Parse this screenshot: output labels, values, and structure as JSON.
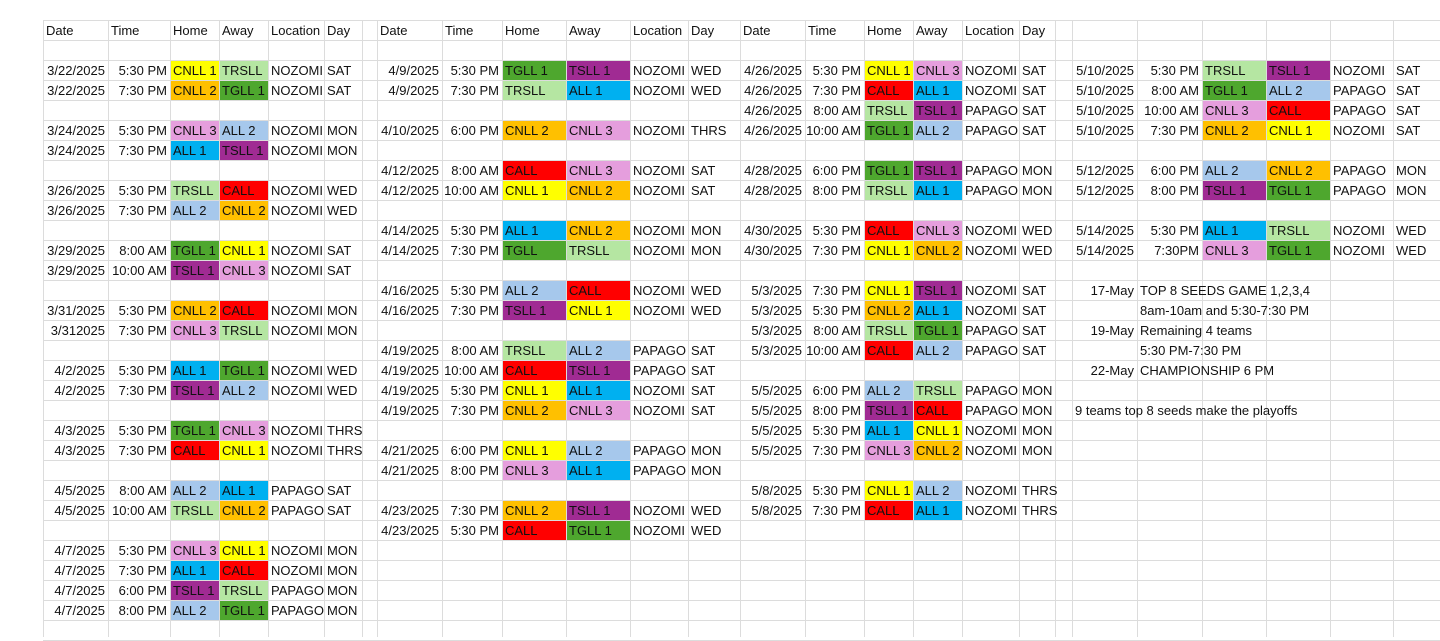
{
  "colors": {
    "CNLL 1": "#ffff00",
    "CNLL 2": "#ffc000",
    "CNLL 3": "#e59edd",
    "TGLL 1": "#4ea72e",
    "TSLL 1": "#a02b93",
    "TRSLL": "#b5e6a2",
    "ALL 1": "#00b0f0",
    "ALL 2": "#a6c8ec",
    "CALL": "#ff0000"
  },
  "headers": {
    "A": [
      "Date",
      "Time",
      "Home",
      "Away",
      "Location",
      "Day"
    ],
    "B": [
      "Date",
      "Time",
      "Home",
      "Away",
      "Location",
      "Day"
    ],
    "C": [
      "Date",
      "Time",
      "Home",
      "Away",
      "Location",
      "Day"
    ]
  },
  "games": {
    "A": [
      {
        "row": 3,
        "date": "3/22/2025",
        "time": "5:30 PM",
        "home": "CNLL 1",
        "away": "TRSLL",
        "location": "NOZOMI",
        "day": "SAT"
      },
      {
        "row": 4,
        "date": "3/22/2025",
        "time": "7:30 PM",
        "home": "CNLL 2",
        "away": "TGLL 1",
        "location": "NOZOMI",
        "day": "SAT"
      },
      {
        "row": 6,
        "date": "3/24/2025",
        "time": "5:30 PM",
        "home": "CNLL 3",
        "away": "ALL 2",
        "location": "NOZOMI",
        "day": "MON"
      },
      {
        "row": 7,
        "date": "3/24/2025",
        "time": "7:30 PM",
        "home": "ALL 1",
        "away": "TSLL 1",
        "location": "NOZOMI",
        "day": "MON"
      },
      {
        "row": 9,
        "date": "3/26/2025",
        "time": "5:30 PM",
        "home": "TRSLL",
        "away": "CALL",
        "location": "NOZOMI",
        "day": "WED"
      },
      {
        "row": 10,
        "date": "3/26/2025",
        "time": "7:30 PM",
        "home": "ALL 2",
        "away": "CNLL 2",
        "location": "NOZOMI",
        "day": "WED"
      },
      {
        "row": 12,
        "date": "3/29/2025",
        "time": "8:00 AM",
        "home": "TGLL 1",
        "away": "CNLL 1",
        "location": "NOZOMI",
        "day": "SAT"
      },
      {
        "row": 13,
        "date": "3/29/2025",
        "time": "10:00 AM",
        "home": "TSLL 1",
        "away": "CNLL 3",
        "location": "NOZOMI",
        "day": "SAT"
      },
      {
        "row": 15,
        "date": "3/31/2025",
        "time": "5:30 PM",
        "home": "CNLL 2",
        "away": "CALL",
        "location": "NOZOMI",
        "day": "MON"
      },
      {
        "row": 16,
        "date": "3/312025",
        "time": "7:30 PM",
        "home": "CNLL 3",
        "away": "TRSLL",
        "location": "NOZOMI",
        "day": "MON"
      },
      {
        "row": 18,
        "date": "4/2/2025",
        "time": "5:30 PM",
        "home": "ALL 1",
        "away": "TGLL 1",
        "location": "NOZOMI",
        "day": "WED"
      },
      {
        "row": 19,
        "date": "4/2/2025",
        "time": "7:30 PM",
        "home": "TSLL 1",
        "away": "ALL 2",
        "location": "NOZOMI",
        "day": "WED"
      },
      {
        "row": 21,
        "date": "4/3/2025",
        "time": "5:30 PM",
        "home": "TGLL 1",
        "away": "CNLL 3",
        "location": "NOZOMI",
        "day": "THRS"
      },
      {
        "row": 22,
        "date": "4/3/2025",
        "time": "7:30 PM",
        "home": "CALL",
        "away": "CNLL 1",
        "location": "NOZOMI",
        "day": "THRS"
      },
      {
        "row": 24,
        "date": "4/5/2025",
        "time": "8:00 AM",
        "home": "ALL 2",
        "away": "ALL 1",
        "location": "PAPAGO",
        "day": "SAT"
      },
      {
        "row": 25,
        "date": "4/5/2025",
        "time": "10:00 AM",
        "home": "TRSLL",
        "away": "CNLL 2",
        "location": "PAPAGO",
        "day": "SAT"
      },
      {
        "row": 27,
        "date": "4/7/2025",
        "time": "5:30 PM",
        "home": "CNLL 3",
        "away": "CNLL 1",
        "location": "NOZOMI",
        "day": "MON"
      },
      {
        "row": 28,
        "date": "4/7/2025",
        "time": "7:30 PM",
        "home": "ALL 1",
        "away": "CALL",
        "location": "NOZOMI",
        "day": "MON"
      },
      {
        "row": 29,
        "date": "4/7/2025",
        "time": "6:00 PM",
        "home": "TSLL 1",
        "away": "TRSLL",
        "location": "PAPAGO",
        "day": "MON"
      },
      {
        "row": 30,
        "date": "4/7/2025",
        "time": "8:00 PM",
        "home": "ALL 2",
        "away": "TGLL 1",
        "location": "PAPAGO",
        "day": "MON"
      }
    ],
    "B": [
      {
        "row": 3,
        "date": "4/9/2025",
        "time": "5:30 PM",
        "home": "TGLL 1",
        "away": "TSLL 1",
        "location": "NOZOMI",
        "day": "WED"
      },
      {
        "row": 4,
        "date": "4/9/2025",
        "time": "7:30 PM",
        "home": "TRSLL",
        "away": "ALL 1",
        "location": "NOZOMI",
        "day": "WED"
      },
      {
        "row": 6,
        "date": "4/10/2025",
        "time": "6:00 PM",
        "home": "CNLL 2",
        "away": "CNLL 3",
        "location": "NOZOMI",
        "day": "THRS"
      },
      {
        "row": 8,
        "date": "4/12/2025",
        "time": "8:00 AM",
        "home": "CALL",
        "away": "CNLL 3",
        "location": "NOZOMI",
        "day": "SAT"
      },
      {
        "row": 9,
        "date": "4/12/2025",
        "time": "10:00 AM",
        "home": "CNLL 1",
        "away": "CNLL 2",
        "location": "NOZOMI",
        "day": "SAT"
      },
      {
        "row": 11,
        "date": "4/14/2025",
        "time": "5:30 PM",
        "home": "ALL 1",
        "away": "CNLL 2",
        "location": "NOZOMI",
        "day": "MON"
      },
      {
        "row": 12,
        "date": "4/14/2025",
        "time": "7:30 PM",
        "home": "TGLL",
        "away": "TRSLL",
        "location": "NOZOMI",
        "day": "MON"
      },
      {
        "row": 14,
        "date": "4/16/2025",
        "time": "5:30 PM",
        "home": "ALL 2",
        "away": "CALL",
        "location": "NOZOMI",
        "day": "WED"
      },
      {
        "row": 15,
        "date": "4/16/2025",
        "time": "7:30 PM",
        "home": "TSLL 1",
        "away": "CNLL 1",
        "location": "NOZOMI",
        "day": "WED"
      },
      {
        "row": 17,
        "date": "4/19/2025",
        "time": "8:00 AM",
        "home": "TRSLL",
        "away": "ALL 2",
        "location": "PAPAGO",
        "day": "SAT"
      },
      {
        "row": 18,
        "date": "4/19/2025",
        "time": "10:00 AM",
        "home": "CALL",
        "away": "TSLL 1",
        "location": "PAPAGO",
        "day": "SAT"
      },
      {
        "row": 19,
        "date": "4/19/2025",
        "time": "5:30 PM",
        "home": "CNLL 1",
        "away": "ALL 1",
        "location": "NOZOMI",
        "day": "SAT"
      },
      {
        "row": 20,
        "date": "4/19/2025",
        "time": "7:30 PM",
        "home": "CNLL 2",
        "away": "CNLL 3",
        "location": "NOZOMI",
        "day": "SAT"
      },
      {
        "row": 22,
        "date": "4/21/2025",
        "time": "6:00 PM",
        "home": "CNLL 1",
        "away": "ALL 2",
        "location": "PAPAGO",
        "day": "MON"
      },
      {
        "row": 23,
        "date": "4/21/2025",
        "time": "8:00 PM",
        "home": "CNLL 3",
        "away": "ALL 1",
        "location": "PAPAGO",
        "day": "MON"
      },
      {
        "row": 25,
        "date": "4/23/2025",
        "time": "7:30 PM",
        "home": "CNLL 2",
        "away": "TSLL 1",
        "location": "NOZOMI",
        "day": "WED"
      },
      {
        "row": 26,
        "date": "4/23/2025",
        "time": "5:30 PM",
        "home": "CALL",
        "away": "TGLL 1",
        "location": "NOZOMI",
        "day": "WED"
      }
    ],
    "C": [
      {
        "row": 3,
        "date": "4/26/2025",
        "time": "5:30 PM",
        "home": "CNLL 1",
        "away": "CNLL 3",
        "location": "NOZOMI",
        "day": "SAT"
      },
      {
        "row": 4,
        "date": "4/26/2025",
        "time": "7:30 PM",
        "home": "CALL",
        "away": "ALL 1",
        "location": "NOZOMI",
        "day": "SAT"
      },
      {
        "row": 5,
        "date": "4/26/2025",
        "time": "8:00 AM",
        "home": "TRSLL",
        "away": "TSLL 1",
        "location": "PAPAGO",
        "day": "SAT"
      },
      {
        "row": 6,
        "date": "4/26/2025",
        "time": "10:00 AM",
        "home": "TGLL 1",
        "away": "ALL 2",
        "location": "PAPAGO",
        "day": "SAT"
      },
      {
        "row": 8,
        "date": "4/28/2025",
        "time": "6:00 PM",
        "home": "TGLL 1",
        "away": "TSLL 1",
        "location": "PAPAGO",
        "day": "MON"
      },
      {
        "row": 9,
        "date": "4/28/2025",
        "time": "8:00 PM",
        "home": "TRSLL",
        "away": "ALL 1",
        "location": "PAPAGO",
        "day": "MON"
      },
      {
        "row": 11,
        "date": "4/30/2025",
        "time": "5:30 PM",
        "home": "CALL",
        "away": "CNLL 3",
        "location": "NOZOMI",
        "day": "WED"
      },
      {
        "row": 12,
        "date": "4/30/2025",
        "time": "7:30 PM",
        "home": "CNLL 1",
        "away": "CNLL 2",
        "location": "NOZOMI",
        "day": "WED"
      },
      {
        "row": 14,
        "date": "5/3/2025",
        "time": "7:30 PM",
        "home": "CNLL 1",
        "away": "TSLL 1",
        "location": "NOZOMI",
        "day": "SAT"
      },
      {
        "row": 15,
        "date": "5/3/2025",
        "time": "5:30 PM",
        "home": "CNLL 2",
        "away": "ALL 1",
        "location": "NOZOMI",
        "day": "SAT"
      },
      {
        "row": 16,
        "date": "5/3/2025",
        "time": "8:00 AM",
        "home": "TRSLL",
        "away": "TGLL 1",
        "location": "PAPAGO",
        "day": "SAT"
      },
      {
        "row": 17,
        "date": "5/3/2025",
        "time": "10:00 AM",
        "home": "CALL",
        "away": "ALL 2",
        "location": "PAPAGO",
        "day": "SAT"
      },
      {
        "row": 19,
        "date": "5/5/2025",
        "time": "6:00 PM",
        "home": "ALL 2",
        "away": "TRSLL",
        "location": "PAPAGO",
        "day": "MON"
      },
      {
        "row": 20,
        "date": "5/5/2025",
        "time": "8:00 PM",
        "home": "TSLL 1",
        "away": "CALL",
        "location": "PAPAGO",
        "day": "MON"
      },
      {
        "row": 21,
        "date": "5/5/2025",
        "time": "5:30 PM",
        "home": "ALL 1",
        "away": "CNLL 1",
        "location": "NOZOMI",
        "day": "MON"
      },
      {
        "row": 22,
        "date": "5/5/2025",
        "time": "7:30 PM",
        "home": "CNLL 3",
        "away": "CNLL 2",
        "location": "NOZOMI",
        "day": "MON"
      },
      {
        "row": 24,
        "date": "5/8/2025",
        "time": "5:30 PM",
        "home": "CNLL 1",
        "away": "ALL 2",
        "location": "NOZOMI",
        "day": "THRS"
      },
      {
        "row": 25,
        "date": "5/8/2025",
        "time": "7:30 PM",
        "home": "CALL",
        "away": "ALL 1",
        "location": "NOZOMI",
        "day": "THRS"
      }
    ],
    "D": [
      {
        "row": 3,
        "date": "5/10/2025",
        "time": "5:30 PM",
        "home": "TRSLL",
        "away": "TSLL 1",
        "location": "NOZOMI",
        "day": "SAT"
      },
      {
        "row": 4,
        "date": "5/10/2025",
        "time": "8:00 AM",
        "home": "TGLL 1",
        "away": "ALL 2",
        "location": "PAPAGO",
        "day": "SAT"
      },
      {
        "row": 5,
        "date": "5/10/2025",
        "time": "10:00 AM",
        "home": "CNLL 3",
        "away": "CALL",
        "location": "PAPAGO",
        "day": "SAT"
      },
      {
        "row": 6,
        "date": "5/10/2025",
        "time": "7:30 PM",
        "home": "CNLL 2",
        "away": "CNLL 1",
        "location": "NOZOMI",
        "day": "SAT"
      },
      {
        "row": 8,
        "date": "5/12/2025",
        "time": "6:00 PM",
        "home": "ALL 2",
        "away": "CNLL 2",
        "location": "PAPAGO",
        "day": "MON"
      },
      {
        "row": 9,
        "date": "5/12/2025",
        "time": "8:00 PM",
        "home": "TSLL 1",
        "away": "TGLL 1",
        "location": "PAPAGO",
        "day": "MON"
      },
      {
        "row": 11,
        "date": "5/14/2025",
        "time": "5:30 PM",
        "home": "ALL 1",
        "away": "TRSLL",
        "location": "NOZOMI",
        "day": "WED"
      },
      {
        "row": 12,
        "date": "5/14/2025",
        "time": "7:30PM",
        "home": "CNLL 3",
        "away": "TGLL 1",
        "location": "NOZOMI",
        "day": "WED"
      }
    ]
  },
  "playoffs": [
    {
      "row": 14,
      "date": "17-May",
      "text": "TOP 8 SEEDS GAME 1,2,3,4"
    },
    {
      "row": 15,
      "date": "",
      "text": "8am-10am and 5:30-7:30 PM"
    },
    {
      "row": 16,
      "date": "19-May",
      "text": "Remaining 4 teams"
    },
    {
      "row": 17,
      "date": "",
      "text": "5:30 PM-7:30 PM"
    },
    {
      "row": 18,
      "date": "22-May",
      "text": "CHAMPIONSHIP 6 PM"
    }
  ],
  "note": {
    "row": 20,
    "text": "9 teams top 8 seeds make the playoffs"
  }
}
